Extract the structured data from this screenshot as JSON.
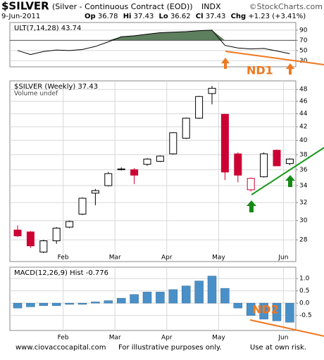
{
  "header": {
    "symbol": "$SILVER",
    "description": "(Silver - Continuous Contract (EOD))",
    "exchange": "INDX",
    "source": "©StockCharts.com",
    "date": "9-Jun-2011",
    "quote": [
      {
        "label": "Op",
        "value": 36.78
      },
      {
        "label": "Hi",
        "value": 37.43
      },
      {
        "label": "Lo",
        "value": 36.62
      },
      {
        "label": "Cl",
        "value": 37.43
      },
      {
        "label": "Chg",
        "value": "+1.23 (+3.41%)"
      }
    ]
  },
  "chart_data": [
    {
      "type": "line",
      "legend": "ULT(7,14,28) 43.74",
      "annotation": "ND1",
      "values": [
        50,
        42,
        48,
        51,
        50,
        52,
        58,
        67,
        77,
        79,
        82,
        85,
        86,
        87,
        89,
        90,
        60,
        55,
        53,
        54,
        49,
        43.74
      ],
      "color": "#000000",
      "fill_color": "#5e7f5e",
      "shade_above": 70,
      "ylim": [
        18,
        105
      ],
      "yticks": [
        30,
        50,
        70,
        90
      ],
      "grid": true
    },
    {
      "type": "candlestick",
      "legend": "$SILVER (Weekly) 37.43",
      "sublegend": "Volume undef",
      "categories": [
        null,
        null,
        null,
        null,
        "Feb",
        null,
        null,
        null,
        "Mar",
        null,
        null,
        null,
        "Apr",
        null,
        null,
        null,
        "May",
        null,
        null,
        null,
        null,
        "Jun"
      ],
      "open": [
        29.0,
        28.8,
        26.8,
        27.9,
        29.3,
        30.7,
        33.1,
        34.0,
        36.0,
        36.0,
        36.7,
        37.1,
        38.1,
        40.3,
        43.3,
        47.3,
        43.9,
        38.1,
        33.5,
        35.1,
        38.6,
        36.8
      ],
      "high": [
        29.5,
        28.9,
        28.0,
        29.3,
        30.0,
        32.6,
        33.6,
        35.7,
        36.3,
        36.2,
        37.5,
        37.9,
        41.2,
        43.4,
        46.9,
        48.6,
        44.0,
        38.3,
        35.0,
        38.3,
        38.7,
        37.5
      ],
      "low": [
        28.3,
        27.2,
        26.7,
        27.6,
        29.2,
        30.6,
        31.7,
        33.9,
        35.9,
        34.2,
        36.5,
        37.0,
        38.0,
        40.2,
        43.2,
        45.5,
        34.7,
        34.4,
        33.3,
        35.0,
        36.7,
        36.6
      ],
      "close": [
        28.4,
        27.4,
        27.9,
        29.2,
        29.9,
        32.5,
        33.4,
        35.5,
        36.1,
        35.3,
        37.4,
        37.8,
        41.1,
        43.3,
        46.8,
        48.2,
        35.7,
        35.3,
        34.9,
        38.1,
        36.5,
        37.4
      ],
      "up_color": "#000000",
      "down_color": "#cc0033",
      "log": true,
      "ylim": [
        25.9,
        49.5
      ],
      "yticks": [
        28,
        30,
        32,
        34,
        36,
        38,
        40,
        42,
        44,
        46,
        48
      ],
      "grid": true
    },
    {
      "type": "bar",
      "legend": "MACD(12,26,9) Hist -0.776",
      "annotation": "ND2",
      "categories": [
        null,
        null,
        null,
        null,
        "Feb",
        null,
        null,
        null,
        "Mar",
        null,
        null,
        null,
        "Apr",
        null,
        null,
        null,
        "May",
        null,
        null,
        null,
        null,
        "Jun"
      ],
      "values": [
        -0.2,
        -0.15,
        -0.1,
        -0.1,
        -0.05,
        -0.05,
        0.05,
        0.1,
        0.2,
        0.35,
        0.45,
        0.45,
        0.55,
        0.7,
        0.9,
        1.1,
        0.6,
        -0.2,
        -0.5,
        -0.65,
        -0.72,
        -0.776
      ],
      "color": "#4a90c8",
      "ylim": [
        -1.11,
        1.46
      ],
      "yticks": [
        {
          "value": 1,
          "label": "1.0"
        },
        0.5,
        {
          "value": 0,
          "label": "0.0"
        },
        -0.5
      ],
      "grid": true
    }
  ],
  "footer": {
    "website": "www.ciovaccocapital.com",
    "disclaimer": "For illustrative purposes only.",
    "risk": "Use at own risk."
  }
}
